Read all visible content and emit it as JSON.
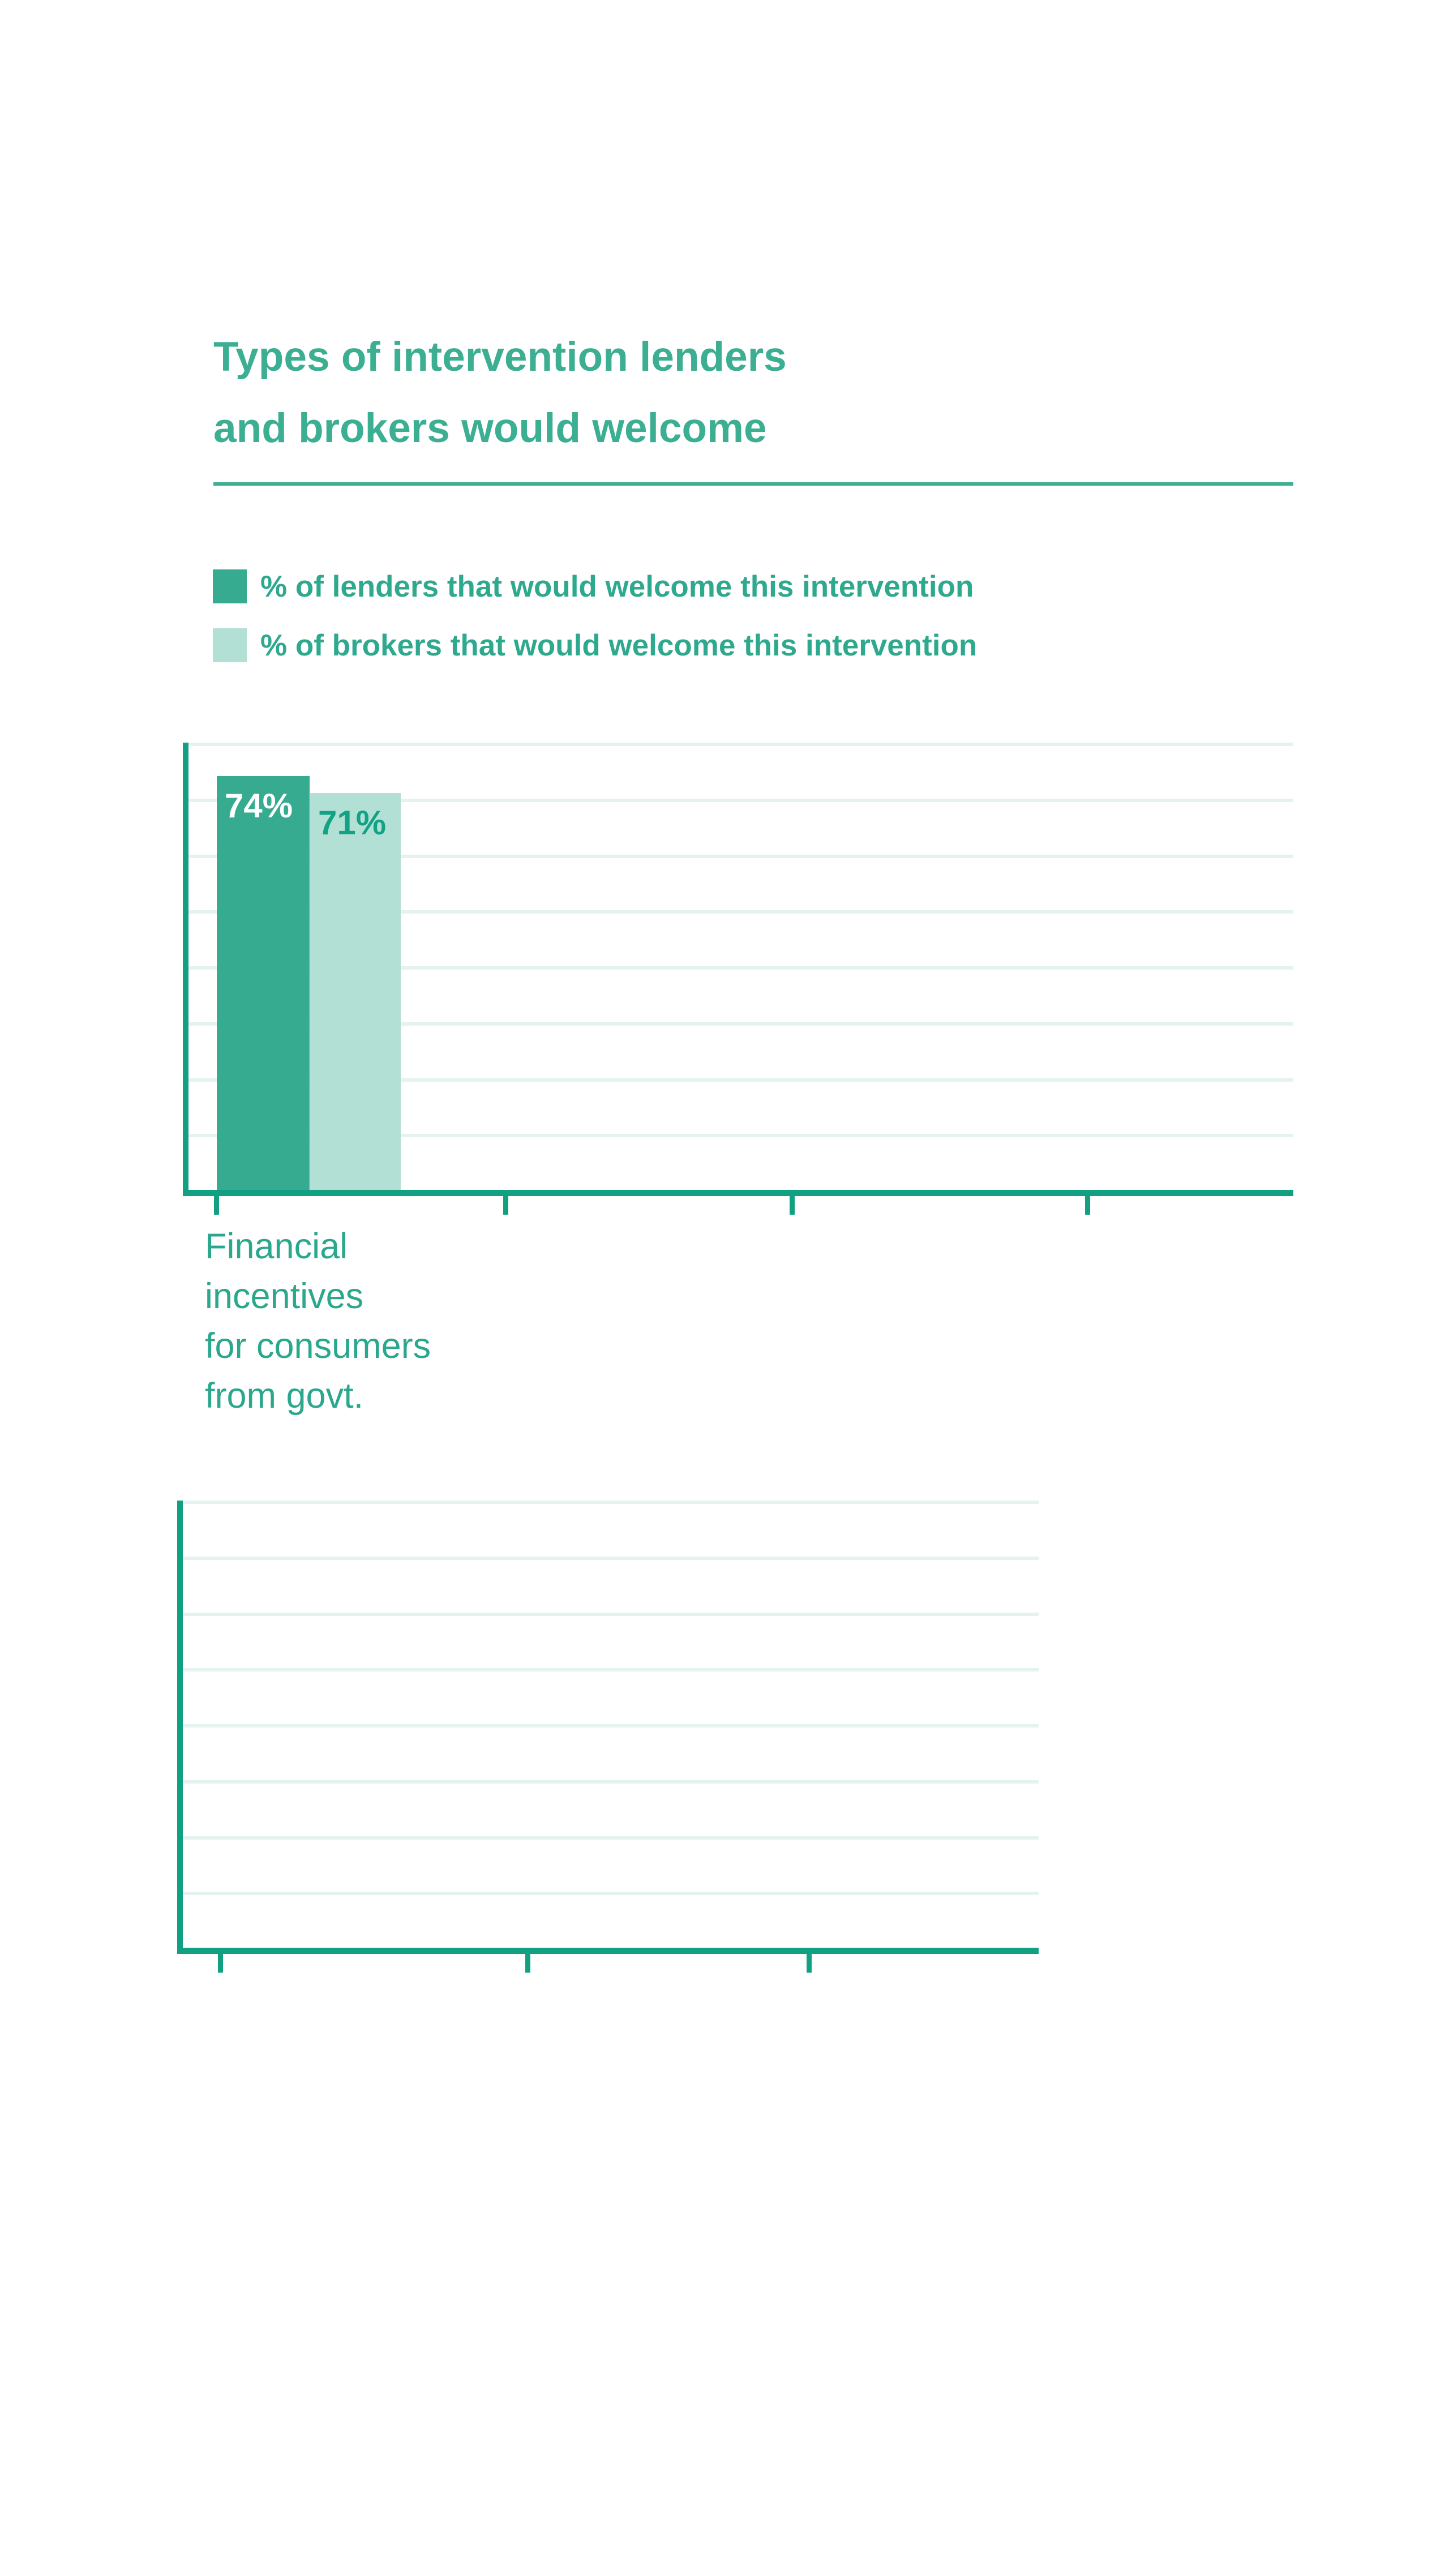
{
  "title": {
    "line1": "Types of intervention lenders",
    "line2": "and brokers would welcome",
    "color": "#3CAE92"
  },
  "divider": {
    "color": "#3CAE92"
  },
  "legend": {
    "text_color": "#2FA98E",
    "items": [
      {
        "label": "% of lenders that would welcome this intervention",
        "swatch_color": "#36AB90"
      },
      {
        "label": "% of brokers that would welcome this intervention",
        "swatch_color": "#B2E0D5"
      }
    ]
  },
  "chart_data": [
    {
      "type": "bar",
      "title": "Types of intervention lenders and brokers would welcome",
      "categories": [
        "Financial incentives for consumers from govt."
      ],
      "series": [
        {
          "name": "% of lenders that would welcome this intervention",
          "values": [
            74
          ],
          "color": "#36AB90",
          "data_labels": [
            "74%"
          ]
        },
        {
          "name": "% of brokers that would welcome this intervention",
          "values": [
            71
          ],
          "color": "#B2E0D5",
          "data_labels": [
            "71%"
          ]
        }
      ],
      "xlabel": "",
      "ylabel": "",
      "ylim": [
        0,
        80
      ],
      "gridline_step_percent": 10,
      "gridlines_visible": true,
      "y_tick_labels_visible": false,
      "x_tick_count": 4,
      "axis_color": "#12A083",
      "gridline_color": "#E4F3EF",
      "data_label_colors": [
        "#ffffff",
        "#12A285"
      ],
      "legend_position": "top-left"
    },
    {
      "type": "bar",
      "categories": [],
      "series": [],
      "ylim": [
        0,
        80
      ],
      "gridline_step_percent": 10,
      "gridlines_visible": true,
      "y_tick_labels_visible": false,
      "x_tick_count": 3,
      "axis_color": "#12A083",
      "gridline_color": "#E4F3EF"
    }
  ],
  "category_label": {
    "lines": [
      "Financial",
      "incentives",
      "for consumers",
      "from govt."
    ],
    "color": "#2AA78C"
  }
}
